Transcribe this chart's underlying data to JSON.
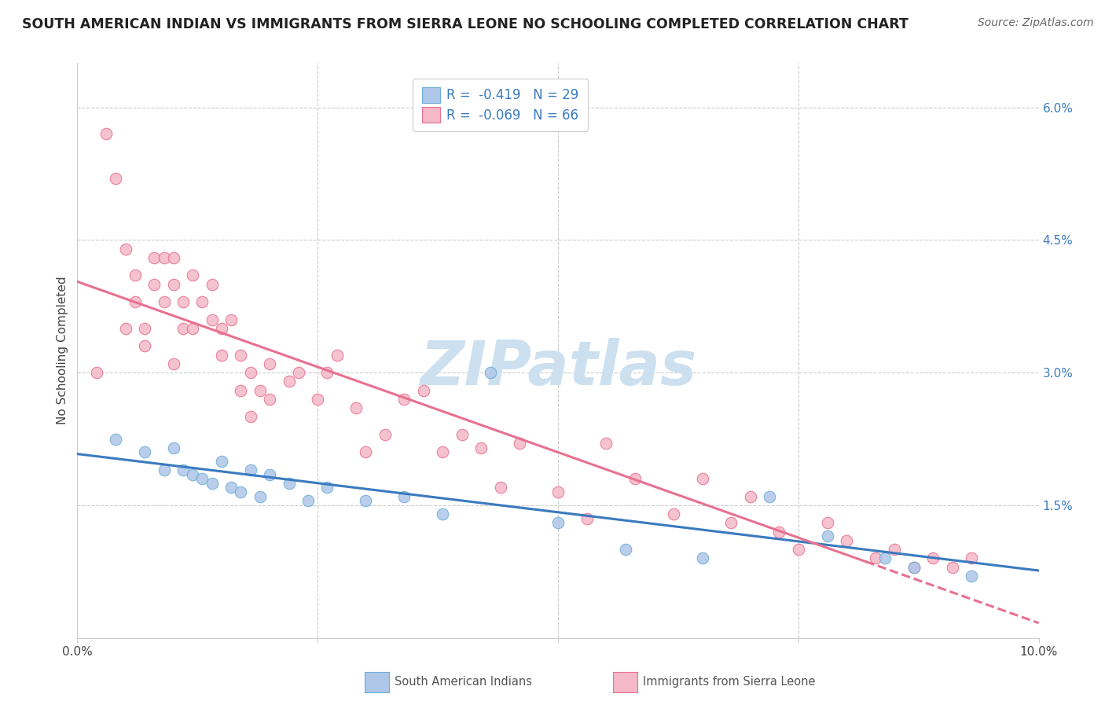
{
  "title": "SOUTH AMERICAN INDIAN VS IMMIGRANTS FROM SIERRA LEONE NO SCHOOLING COMPLETED CORRELATION CHART",
  "source": "Source: ZipAtlas.com",
  "ylabel": "No Schooling Completed",
  "ytick_values": [
    0.0,
    0.015,
    0.03,
    0.045,
    0.06
  ],
  "xlim": [
    0.0,
    0.1
  ],
  "ylim": [
    0.0,
    0.065
  ],
  "legend_label1": "R =  -0.419   N = 29",
  "legend_label2": "R =  -0.069   N = 66",
  "legend_color1": "#aec6e8",
  "legend_color2": "#f4b8c8",
  "series1_color": "#aec6e8",
  "series1_edge": "#6baed6",
  "series2_color": "#f4b8c8",
  "series2_edge": "#e87090",
  "line1_color": "#3a7abf",
  "line2_color": "#e87090",
  "watermark": "ZIPatlas",
  "watermark_color": "#cce0f0",
  "series1_label": "South American Indians",
  "series2_label": "Immigrants from Sierra Leone",
  "blue_x": [
    0.004,
    0.007,
    0.009,
    0.01,
    0.011,
    0.012,
    0.013,
    0.014,
    0.015,
    0.016,
    0.017,
    0.018,
    0.019,
    0.02,
    0.022,
    0.024,
    0.026,
    0.03,
    0.034,
    0.038,
    0.043,
    0.05,
    0.057,
    0.065,
    0.072,
    0.078,
    0.084,
    0.087,
    0.093
  ],
  "blue_y": [
    0.0225,
    0.021,
    0.019,
    0.0215,
    0.019,
    0.0185,
    0.018,
    0.0175,
    0.02,
    0.017,
    0.0165,
    0.019,
    0.016,
    0.0185,
    0.0175,
    0.0155,
    0.017,
    0.0155,
    0.016,
    0.014,
    0.03,
    0.013,
    0.01,
    0.009,
    0.016,
    0.0115,
    0.009,
    0.008,
    0.007
  ],
  "pink_x": [
    0.002,
    0.003,
    0.004,
    0.005,
    0.005,
    0.006,
    0.006,
    0.007,
    0.007,
    0.008,
    0.008,
    0.009,
    0.009,
    0.01,
    0.01,
    0.01,
    0.011,
    0.011,
    0.012,
    0.012,
    0.013,
    0.014,
    0.014,
    0.015,
    0.015,
    0.016,
    0.017,
    0.017,
    0.018,
    0.018,
    0.019,
    0.02,
    0.02,
    0.022,
    0.023,
    0.025,
    0.026,
    0.027,
    0.029,
    0.03,
    0.032,
    0.034,
    0.036,
    0.038,
    0.04,
    0.042,
    0.044,
    0.046,
    0.05,
    0.053,
    0.055,
    0.058,
    0.062,
    0.065,
    0.068,
    0.07,
    0.073,
    0.075,
    0.078,
    0.08,
    0.083,
    0.085,
    0.087,
    0.089,
    0.091,
    0.093
  ],
  "pink_y": [
    0.03,
    0.057,
    0.052,
    0.044,
    0.035,
    0.041,
    0.038,
    0.035,
    0.033,
    0.043,
    0.04,
    0.043,
    0.038,
    0.043,
    0.04,
    0.031,
    0.038,
    0.035,
    0.041,
    0.035,
    0.038,
    0.04,
    0.036,
    0.035,
    0.032,
    0.036,
    0.032,
    0.028,
    0.03,
    0.025,
    0.028,
    0.031,
    0.027,
    0.029,
    0.03,
    0.027,
    0.03,
    0.032,
    0.026,
    0.021,
    0.023,
    0.027,
    0.028,
    0.021,
    0.023,
    0.0215,
    0.017,
    0.022,
    0.0165,
    0.0135,
    0.022,
    0.018,
    0.014,
    0.018,
    0.013,
    0.016,
    0.012,
    0.01,
    0.013,
    0.011,
    0.009,
    0.01,
    0.008,
    0.009,
    0.008,
    0.009
  ],
  "title_fontsize": 12.5,
  "source_fontsize": 10,
  "label_fontsize": 11,
  "tick_fontsize": 11,
  "legend_fontsize": 12
}
